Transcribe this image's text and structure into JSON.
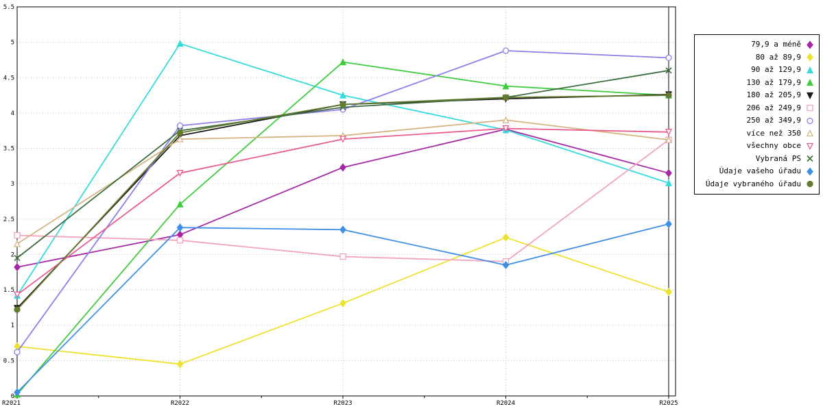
{
  "chart_data": {
    "type": "line",
    "title": "",
    "xlabel": "",
    "ylabel": "",
    "x": [
      "R2021",
      "R2022",
      "R2023",
      "R2024",
      "R2025"
    ],
    "ylim": [
      0,
      5.5
    ],
    "ytick_labels": [
      "0",
      "0.5",
      "1",
      "1.5",
      "2",
      "2.5",
      "3",
      "3.5",
      "4",
      "4.5",
      "5",
      "5.5"
    ],
    "grid": "dotted",
    "legend_position": "outside-right",
    "highlight_vertical_line_at_x": "R2025",
    "series": [
      {
        "name": "79,9 a méně",
        "color": "#A427A4",
        "marker": "diamond",
        "filled": true,
        "values": [
          1.82,
          2.28,
          3.23,
          3.77,
          3.15
        ]
      },
      {
        "name": "80 až 89,9",
        "color": "#EDE32E",
        "marker": "diamond",
        "filled": true,
        "values": [
          0.7,
          0.45,
          1.31,
          2.24,
          1.47
        ]
      },
      {
        "name": "90 až 129,9",
        "color": "#35DBDB",
        "marker": "triangle-up",
        "filled": true,
        "values": [
          1.42,
          4.98,
          4.25,
          3.76,
          3.01
        ]
      },
      {
        "name": "130 až 179,9",
        "color": "#3ECC3E",
        "marker": "triangle-up",
        "filled": true,
        "values": [
          0.02,
          2.71,
          4.72,
          4.38,
          4.25
        ]
      },
      {
        "name": "180 až 205,9",
        "color": "#1A1A1A",
        "marker": "triangle-down",
        "filled": true,
        "values": [
          1.24,
          3.68,
          4.12,
          4.2,
          4.26
        ]
      },
      {
        "name": "206 až 249,9",
        "color": "#F2A3BF",
        "marker": "square",
        "filled": false,
        "values": [
          2.27,
          2.2,
          1.97,
          1.9,
          3.62
        ]
      },
      {
        "name": "250 až 349,9",
        "color": "#8D7FE8",
        "marker": "circle",
        "filled": false,
        "values": [
          0.62,
          3.82,
          4.05,
          4.88,
          4.78
        ]
      },
      {
        "name": "více než 350",
        "color": "#D4B483",
        "marker": "triangle-up",
        "filled": false,
        "values": [
          2.15,
          3.63,
          3.68,
          3.9,
          3.62
        ]
      },
      {
        "name": "všechny obce",
        "color": "#EA5C8F",
        "marker": "triangle-down",
        "filled": false,
        "values": [
          1.43,
          3.15,
          3.63,
          3.78,
          3.73
        ]
      },
      {
        "name": "Vybraná PS",
        "color": "#3E6B3E",
        "marker": "x",
        "filled": false,
        "values": [
          1.95,
          3.75,
          4.08,
          4.22,
          4.6
        ]
      },
      {
        "name": "Údaje vašeho úřadu",
        "color": "#3F8FE6",
        "marker": "diamond",
        "filled": true,
        "values": [
          0.05,
          2.38,
          2.35,
          1.85,
          2.43
        ]
      },
      {
        "name": "Údaje vybraného úřadu",
        "color": "#637B2F",
        "marker": "circle",
        "filled": true,
        "values": [
          1.22,
          3.72,
          4.12,
          4.22,
          4.25
        ]
      }
    ]
  }
}
